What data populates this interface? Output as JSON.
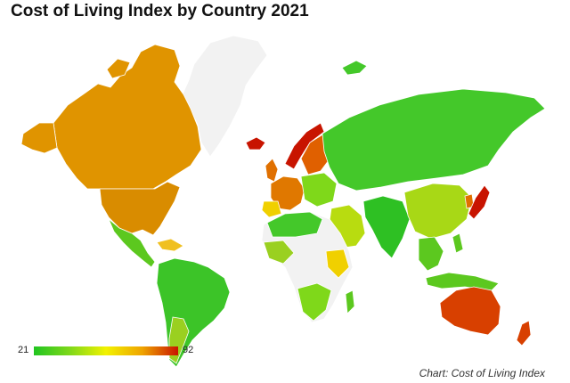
{
  "title": "Cost of Living Index by Country 2021",
  "credit": "Chart: Cost of Living Index",
  "legend": {
    "min": "21",
    "max": "92",
    "colors": [
      "#21c521",
      "#7fd81a",
      "#f2f200",
      "#efa400",
      "#c81400"
    ]
  },
  "colors": {
    "no_data": "#f2f2f2",
    "border": "#ffffff"
  }
}
